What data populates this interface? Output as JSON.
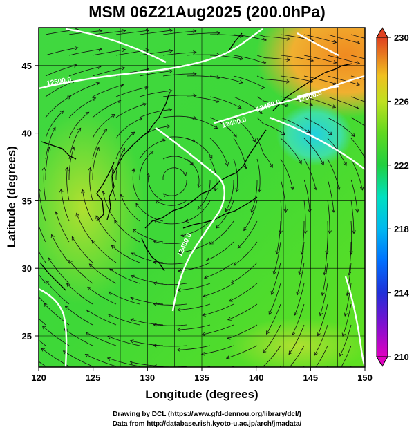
{
  "title": "MSM 06Z21Aug2025 (200.0hPa)",
  "x_axis": {
    "label": "Longitude (degrees)",
    "ticks": [
      "120",
      "125",
      "130",
      "135",
      "140",
      "145",
      "150"
    ]
  },
  "y_axis": {
    "label": "Latitude  (degrees)",
    "ticks": [
      "25",
      "30",
      "35",
      "40",
      "45"
    ]
  },
  "colorbar": {
    "ticks": [
      "230",
      "226",
      "222",
      "218",
      "214",
      "210"
    ],
    "min": 210,
    "max": 230,
    "colors": [
      "#e000c0",
      "#a000d0",
      "#4020d0",
      "#0050ff",
      "#00a0ff",
      "#00e0e0",
      "#00d080",
      "#20d020",
      "#80e020",
      "#d0e020",
      "#f0b020",
      "#f08020",
      "#e05020"
    ]
  },
  "contour_labels": [
    "12500.0",
    "12400.0",
    "12450.0",
    "12400.0",
    "12500.0"
  ],
  "credits": {
    "line1": "Drawing by DCL (https://www.gfd-dennou.org/library/dcl/)",
    "line2": "Data from http://database.rish.kyoto-u.ac.jp/arch/jmadata/"
  }
}
